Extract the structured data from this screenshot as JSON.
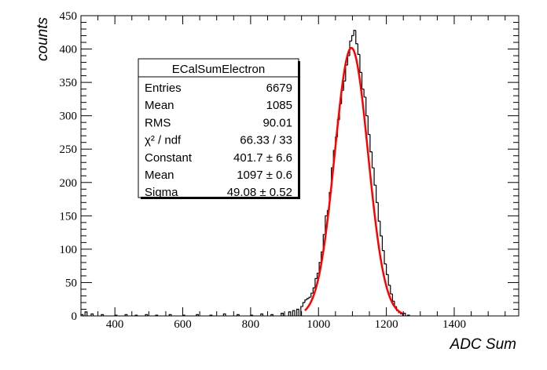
{
  "chart_data": {
    "type": "histogram",
    "title": "",
    "xlabel": "ADC Sum",
    "ylabel": "counts",
    "xlim": [
      300,
      1590
    ],
    "ylim": [
      0,
      450
    ],
    "x_ticks": [
      400,
      600,
      800,
      1000,
      1200,
      1400
    ],
    "y_ticks": [
      0,
      50,
      100,
      150,
      200,
      250,
      300,
      350,
      400,
      450
    ],
    "bin_width": 6,
    "histogram_bins": [
      [
        300,
        2
      ],
      [
        312,
        6
      ],
      [
        330,
        3
      ],
      [
        360,
        2
      ],
      [
        400,
        1
      ],
      [
        430,
        2
      ],
      [
        460,
        1
      ],
      [
        490,
        2
      ],
      [
        520,
        1
      ],
      [
        560,
        2
      ],
      [
        600,
        1
      ],
      [
        640,
        2
      ],
      [
        680,
        1
      ],
      [
        720,
        3
      ],
      [
        760,
        2
      ],
      [
        800,
        1
      ],
      [
        830,
        3
      ],
      [
        860,
        2
      ],
      [
        890,
        4
      ],
      [
        912,
        6
      ],
      [
        924,
        8
      ],
      [
        936,
        10
      ],
      [
        948,
        14
      ],
      [
        954,
        20
      ],
      [
        960,
        24
      ],
      [
        966,
        26
      ],
      [
        972,
        28
      ],
      [
        978,
        34
      ],
      [
        984,
        42
      ],
      [
        990,
        56
      ],
      [
        996,
        64
      ],
      [
        1002,
        80
      ],
      [
        1008,
        96
      ],
      [
        1014,
        122
      ],
      [
        1020,
        150
      ],
      [
        1026,
        158
      ],
      [
        1032,
        185
      ],
      [
        1038,
        222
      ],
      [
        1044,
        248
      ],
      [
        1050,
        268
      ],
      [
        1056,
        294
      ],
      [
        1062,
        318
      ],
      [
        1068,
        338
      ],
      [
        1074,
        352
      ],
      [
        1080,
        376
      ],
      [
        1086,
        390
      ],
      [
        1092,
        412
      ],
      [
        1098,
        420
      ],
      [
        1104,
        428
      ],
      [
        1110,
        408
      ],
      [
        1116,
        392
      ],
      [
        1122,
        365
      ],
      [
        1128,
        340
      ],
      [
        1134,
        328
      ],
      [
        1140,
        300
      ],
      [
        1146,
        272
      ],
      [
        1152,
        246
      ],
      [
        1158,
        222
      ],
      [
        1164,
        196
      ],
      [
        1170,
        170
      ],
      [
        1176,
        142
      ],
      [
        1182,
        120
      ],
      [
        1188,
        98
      ],
      [
        1194,
        78
      ],
      [
        1200,
        62
      ],
      [
        1206,
        46
      ],
      [
        1212,
        33
      ],
      [
        1218,
        22
      ],
      [
        1224,
        14
      ],
      [
        1230,
        8
      ],
      [
        1236,
        5
      ],
      [
        1242,
        3
      ],
      [
        1250,
        4
      ],
      [
        1262,
        1
      ]
    ],
    "fit": {
      "function": "gaus",
      "constant": 401.7,
      "mean": 1097,
      "sigma": 49.08,
      "x_range": [
        960,
        1250
      ],
      "color": "#ff0000"
    },
    "stats_box": {
      "title": "ECalSumElectron",
      "rows": [
        {
          "label": "Entries",
          "value": "6679"
        },
        {
          "label": "Mean",
          "value": "1085"
        },
        {
          "label": "RMS",
          "value": "90.01"
        },
        {
          "label": "χ² / ndf",
          "value": "66.33 / 33"
        },
        {
          "label": "Constant",
          "value": "401.7 ± 6.6"
        },
        {
          "label": "Mean",
          "value": "1097 ± 0.6"
        },
        {
          "label": "Sigma",
          "value": "49.08 ± 0.52"
        }
      ]
    },
    "legend": "stats box top-left"
  }
}
